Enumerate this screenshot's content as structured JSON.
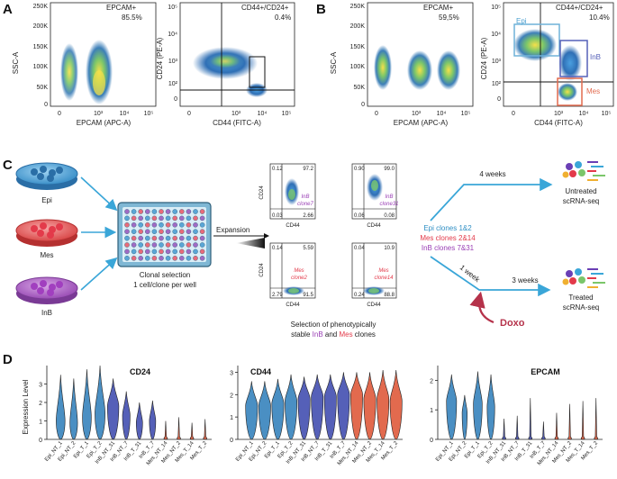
{
  "panels": {
    "a": "A",
    "b": "B",
    "c": "C",
    "d": "D"
  },
  "panel_a": {
    "left": {
      "ylabel": "SSC-A",
      "xlabel": "EPCAM (APC-A)",
      "yticks": [
        "250K",
        "200K",
        "150K",
        "100K",
        "50K",
        "0"
      ],
      "xticks": [
        "0",
        "10³",
        "10⁴",
        "10⁵"
      ],
      "gate_label": "EPCAM+",
      "gate_value": "85.5%"
    },
    "right": {
      "ylabel": "CD24 (PE-A)",
      "xlabel": "CD44 (FITC-A)",
      "yticks": [
        "10⁵",
        "10⁴",
        "10³",
        "10²",
        "0"
      ],
      "xticks": [
        "0",
        "10³",
        "10⁴",
        "10⁵"
      ],
      "gate_label": "CD44+/CD24+",
      "gate_value": "0.4%"
    }
  },
  "panel_b": {
    "left": {
      "ylabel": "SSC-A",
      "xlabel": "EPCAM (APC-A)",
      "yticks": [
        "250K",
        "200K",
        "150K",
        "100K",
        "50K",
        "0"
      ],
      "xticks": [
        "0",
        "10³",
        "10⁴",
        "10⁵"
      ],
      "gate_label": "EPCAM+",
      "gate_value": "59,5%"
    },
    "right": {
      "ylabel": "CD24 (PE-A)",
      "xlabel": "CD44 (FITC-A)",
      "yticks": [
        "10⁵",
        "10⁴",
        "10³",
        "10²",
        "0"
      ],
      "xticks": [
        "0",
        "10³",
        "10⁴",
        "10⁵"
      ],
      "gate_label": "CD44+/CD24+",
      "gate_value": "10.4%",
      "gates": [
        "Epi",
        "InB",
        "Mes"
      ]
    }
  },
  "panel_c": {
    "dishes": [
      "Epi",
      "Mes",
      "InB"
    ],
    "selection_text": [
      "Clonal selection",
      "1 cell/clone per well"
    ],
    "expansion_label": "Expansion",
    "mini_plots": [
      {
        "tl": "0.12",
        "tr": "97.2",
        "bl": "0.03",
        "br": "2.66",
        "name": "InB",
        "clone": "clone7",
        "ylabel": "CD24",
        "xlabel": "CD44"
      },
      {
        "tl": "0.90",
        "tr": "99.0",
        "bl": "0.06",
        "br": "0.08",
        "name": "InB",
        "clone": "clone31",
        "ylabel": "",
        "xlabel": "CD44"
      },
      {
        "tl": "0.14",
        "tr": "5.59",
        "bl": "2.79",
        "br": "91.5",
        "name": "Mes",
        "clone": "clone2",
        "ylabel": "CD24",
        "xlabel": "CD44"
      },
      {
        "tl": "0.04",
        "tr": "10.9",
        "bl": "0.24",
        "br": "88.8",
        "name": "Mes",
        "clone": "clone14",
        "ylabel": "",
        "xlabel": "CD44"
      }
    ],
    "selection_caption_1": "Selection of phenotypically",
    "selection_caption_2a": "stable ",
    "selection_caption_inb": "InB",
    "selection_caption_and": " and ",
    "selection_caption_mes": "Mes",
    "selection_caption_2b": " clones",
    "clones": [
      "Epi clones 1&2",
      "Mes clones 2&14",
      "InB clones 7&31"
    ],
    "timeline": {
      "four_weeks": "4 weeks",
      "one_week": "1 week",
      "three_weeks": "3 weeks",
      "drug": "Doxo"
    },
    "outputs": [
      {
        "line1": "Untreated",
        "line2": "scRNA-seq"
      },
      {
        "line1": "Treated",
        "line2": "scRNA-seq"
      }
    ]
  },
  "panel_d": {
    "ylabel": "Expression Level",
    "plots": [
      {
        "title": "CD24",
        "yticks": [
          "0",
          "1",
          "2",
          "3"
        ],
        "ymax": 4
      },
      {
        "title": "CD44",
        "yticks": [
          "0",
          "1",
          "2",
          "3"
        ],
        "ymax": 3.3
      },
      {
        "title": "EPCAM",
        "yticks": [
          "0",
          "1",
          "2"
        ],
        "ymax": 2.5
      }
    ]
  },
  "chart_data": {
    "type": "violin",
    "categories": [
      "Epi_NT_1",
      "Epi_NT_2",
      "Epi_T_1",
      "Epi_T_2",
      "InB_NT_31",
      "InB_NT_7",
      "InB_T_31",
      "InB_T_7",
      "Mes_NT_14",
      "Mes_NT_2",
      "Mes_T_14",
      "Mes_T_2"
    ],
    "groups": [
      "Epi",
      "Epi",
      "Epi",
      "Epi",
      "InB",
      "InB",
      "InB",
      "InB",
      "Mes",
      "Mes",
      "Mes",
      "Mes"
    ],
    "colors": {
      "Epi": "#4a8fc3",
      "InB": "#5560b8",
      "Mes": "#e26a4e"
    },
    "ylabel": "Expression Level",
    "genes": [
      {
        "gene": "CD24",
        "max": [
          3.5,
          3.3,
          3.8,
          4.0,
          3.3,
          2.6,
          2.0,
          2.1,
          1.0,
          1.2,
          0.9,
          1.1
        ],
        "center": [
          1.0,
          0.9,
          1.2,
          1.4,
          1.8,
          1.3,
          0.9,
          1.0,
          0.0,
          0.0,
          0.0,
          0.0
        ],
        "width": [
          0.7,
          0.6,
          0.7,
          0.8,
          0.9,
          0.6,
          0.5,
          0.5,
          0.0,
          0.0,
          0.0,
          0.0
        ]
      },
      {
        "gene": "CD44",
        "max": [
          2.6,
          2.6,
          2.7,
          2.9,
          2.8,
          2.9,
          2.9,
          3.0,
          3.0,
          3.0,
          3.1,
          3.1
        ],
        "center": [
          1.5,
          1.5,
          1.6,
          1.7,
          1.8,
          1.9,
          1.9,
          2.0,
          2.0,
          1.8,
          1.8,
          1.7
        ],
        "width": [
          0.95,
          0.95,
          0.95,
          0.95,
          0.95,
          0.95,
          0.95,
          0.95,
          0.95,
          0.95,
          0.95,
          0.95
        ]
      },
      {
        "gene": "EPCAM",
        "max": [
          2.2,
          1.5,
          2.3,
          2.2,
          0.7,
          0.8,
          1.4,
          0.6,
          0.9,
          1.2,
          1.3,
          1.4
        ],
        "center": [
          1.3,
          0.9,
          1.2,
          1.1,
          0.0,
          0.0,
          0.0,
          0.0,
          0.0,
          0.0,
          0.0,
          0.0
        ],
        "width": [
          0.8,
          0.4,
          0.7,
          0.6,
          0.0,
          0.0,
          0.0,
          0.0,
          0.0,
          0.0,
          0.0,
          0.0
        ]
      }
    ]
  }
}
